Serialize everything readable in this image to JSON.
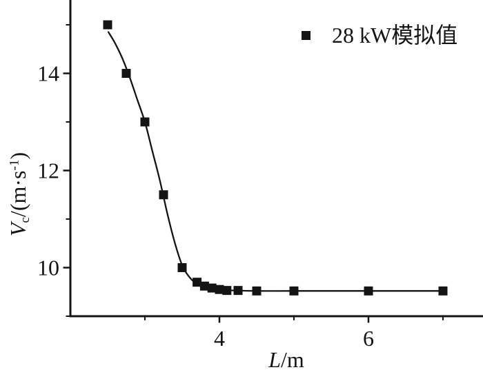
{
  "figure": {
    "background": "#ffffff",
    "ink_color": "#141414"
  },
  "chart_data": {
    "type": "scatter",
    "title": "",
    "xlabel": {
      "var": "L",
      "suffix": "/m"
    },
    "ylabel": {
      "var": "V",
      "sub": "c",
      "mid": "/(m·s",
      "sup": "-1",
      "end": ")"
    },
    "legend": {
      "marker": "filled-square-icon",
      "label": "28 kW模拟值",
      "position": "top-right"
    },
    "series": [
      {
        "name": "28 kW模拟值",
        "marker": "square",
        "marker_color": "#141414",
        "points": [
          [
            2.5,
            15.0
          ],
          [
            2.75,
            14.0
          ],
          [
            3.0,
            13.0
          ],
          [
            3.25,
            11.5
          ],
          [
            3.5,
            10.0
          ],
          [
            3.7,
            9.7
          ],
          [
            3.8,
            9.62
          ],
          [
            3.9,
            9.58
          ],
          [
            4.0,
            9.55
          ],
          [
            4.1,
            9.53
          ],
          [
            4.25,
            9.53
          ],
          [
            4.5,
            9.52
          ],
          [
            5.0,
            9.52
          ],
          [
            6.0,
            9.52
          ],
          [
            7.0,
            9.52
          ]
        ]
      }
    ],
    "fit_curve": {
      "description": "smooth fitted decay curve through the simulated points",
      "color": "#141414",
      "anchors": [
        [
          2.51,
          14.85
        ],
        [
          2.6,
          14.62
        ],
        [
          2.7,
          14.3
        ],
        [
          2.8,
          13.9
        ],
        [
          2.9,
          13.45
        ],
        [
          3.0,
          13.0
        ],
        [
          3.1,
          12.4
        ],
        [
          3.2,
          11.8
        ],
        [
          3.3,
          11.12
        ],
        [
          3.4,
          10.52
        ],
        [
          3.5,
          10.05
        ],
        [
          3.6,
          9.8
        ],
        [
          3.7,
          9.66
        ],
        [
          3.8,
          9.59
        ],
        [
          3.9,
          9.56
        ],
        [
          4.0,
          9.54
        ],
        [
          4.2,
          9.53
        ],
        [
          4.5,
          9.52
        ],
        [
          5.0,
          9.52
        ],
        [
          6.0,
          9.52
        ],
        [
          7.0,
          9.52
        ]
      ]
    },
    "x_axis": {
      "min_visible": 2.0,
      "max_visible": 7.53,
      "major_ticks": [
        4,
        6
      ],
      "major_tick_labels": [
        "4",
        "6"
      ],
      "minor_ticks": [
        3,
        5,
        7
      ],
      "grid": false
    },
    "y_axis": {
      "min_visible": 9.0,
      "max_visible": 15.5,
      "major_ticks": [
        10,
        12,
        14
      ],
      "major_tick_labels": [
        "10",
        "12",
        "14"
      ],
      "minor_ticks": [
        9,
        11,
        13,
        15
      ],
      "grid": false
    }
  }
}
